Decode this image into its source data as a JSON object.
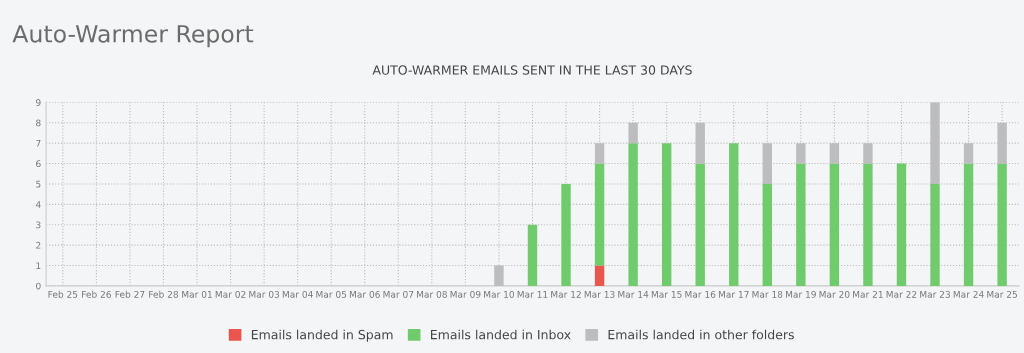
{
  "chart_data": {
    "type": "bar",
    "stacked": true,
    "title": "Auto-Warmer Report",
    "subtitle": "AUTO-WARMER EMAILS SENT IN THE LAST 30 DAYS",
    "categories": [
      "Feb 25",
      "Feb 26",
      "Feb 27",
      "Feb 28",
      "Mar 01",
      "Mar 02",
      "Mar 03",
      "Mar 04",
      "Mar 05",
      "Mar 06",
      "Mar 07",
      "Mar 08",
      "Mar 09",
      "Mar 10",
      "Mar 11",
      "Mar 12",
      "Mar 13",
      "Mar 14",
      "Mar 15",
      "Mar 16",
      "Mar 17",
      "Mar 18",
      "Mar 19",
      "Mar 20",
      "Mar 21",
      "Mar 22",
      "Mar 23",
      "Mar 24",
      "Mar 25"
    ],
    "series": [
      {
        "name": "Emails landed in Spam",
        "color": "#e8564e",
        "values": [
          0,
          0,
          0,
          0,
          0,
          0,
          0,
          0,
          0,
          0,
          0,
          0,
          0,
          0,
          0,
          0,
          1,
          0,
          0,
          0,
          0,
          0,
          0,
          0,
          0,
          0,
          0,
          0,
          0
        ]
      },
      {
        "name": "Emails landed in Inbox",
        "color": "#6fcb6c",
        "values": [
          0,
          0,
          0,
          0,
          0,
          0,
          0,
          0,
          0,
          0,
          0,
          0,
          0,
          0,
          3,
          5,
          5,
          7,
          7,
          6,
          7,
          5,
          6,
          6,
          6,
          6,
          5,
          6,
          6
        ]
      },
      {
        "name": "Emails landed in other folders",
        "color": "#bdbdbf",
        "values": [
          0,
          0,
          0,
          0,
          0,
          0,
          0,
          0,
          0,
          0,
          0,
          0,
          0,
          1,
          0,
          0,
          1,
          1,
          0,
          2,
          0,
          2,
          1,
          1,
          1,
          0,
          4,
          1,
          2
        ]
      }
    ],
    "ylim": [
      0,
      9
    ],
    "yticks": [
      0,
      1,
      2,
      3,
      4,
      5,
      6,
      7,
      8,
      9
    ],
    "grid": true,
    "legend": "bottom"
  }
}
